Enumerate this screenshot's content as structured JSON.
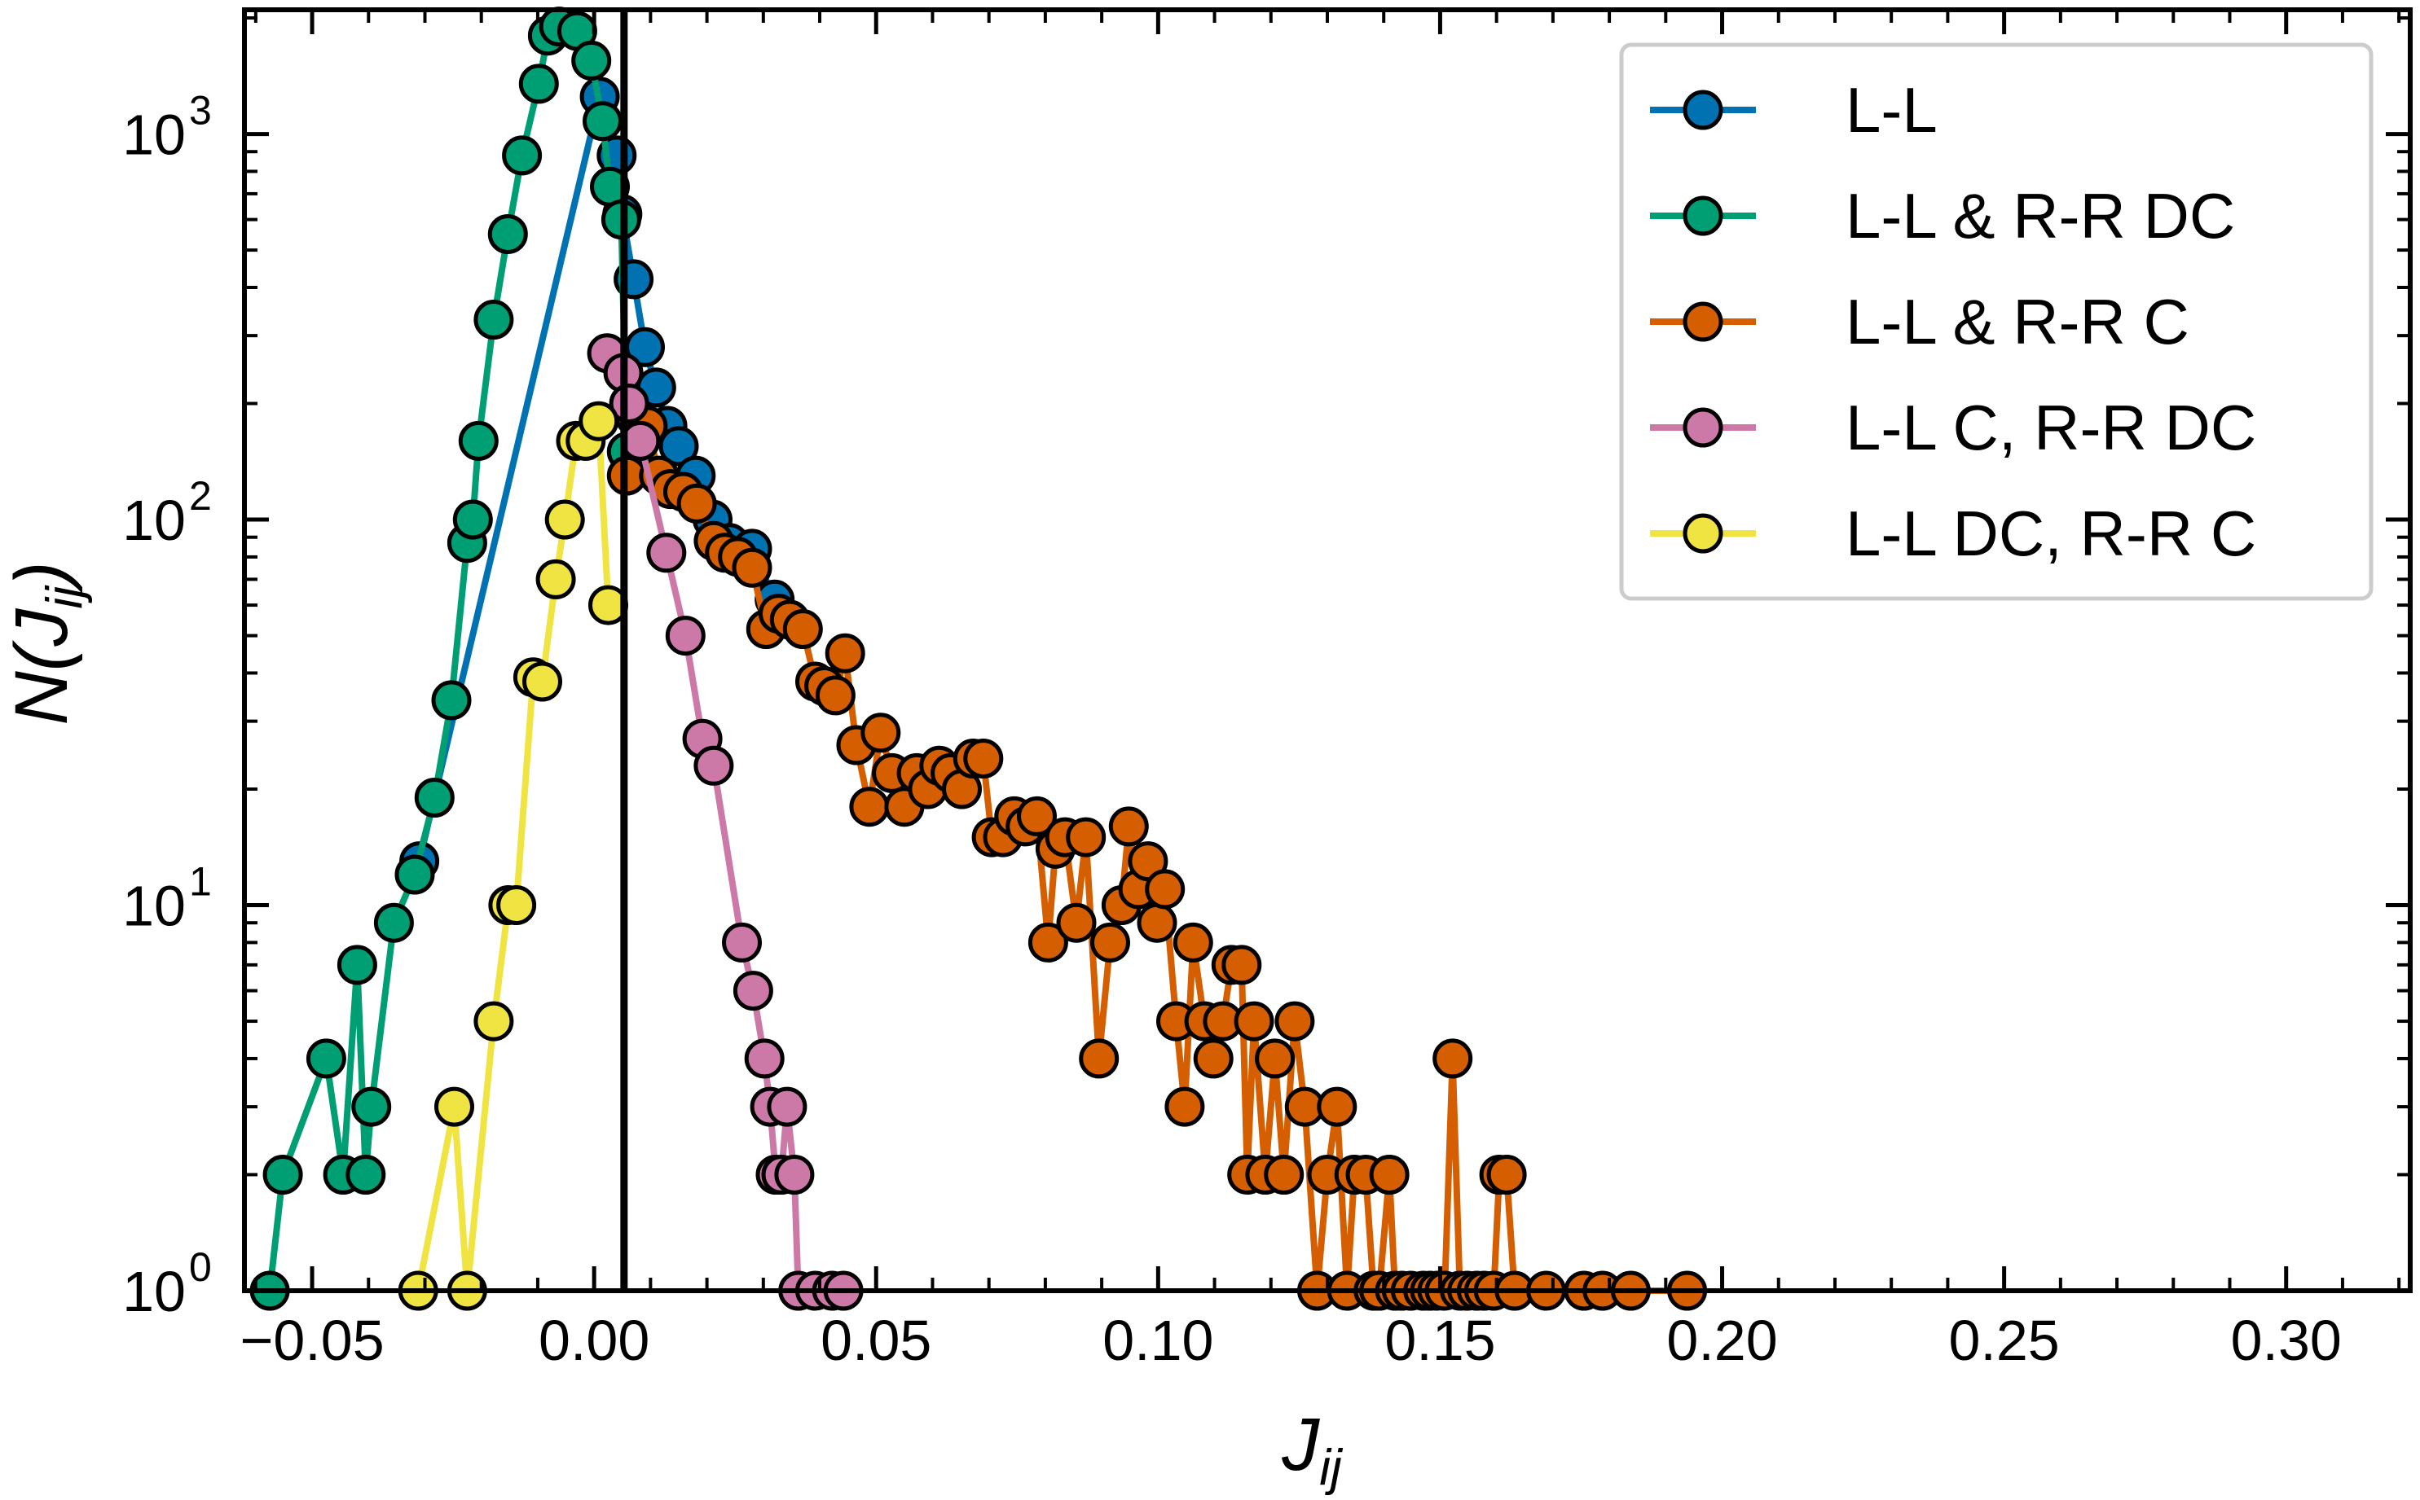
{
  "chart_data": {
    "type": "line",
    "xlabel": "J",
    "xlabel_sub": "ij",
    "ylabel": "N(J",
    "ylabel_sub": "ij",
    "ylabel_close": ")",
    "xlim": [
      -0.062,
      0.322
    ],
    "ylim": [
      1,
      2100
    ],
    "y_scale": "log",
    "x_ticks": [
      {
        "value": -0.05,
        "label": "−0.05"
      },
      {
        "value": 0.0,
        "label": "0.00"
      },
      {
        "value": 0.05,
        "label": "0.05"
      },
      {
        "value": 0.1,
        "label": "0.10"
      },
      {
        "value": 0.15,
        "label": "0.15"
      },
      {
        "value": 0.2,
        "label": "0.20"
      },
      {
        "value": 0.25,
        "label": "0.25"
      },
      {
        "value": 0.3,
        "label": "0.30"
      }
    ],
    "y_ticks": [
      {
        "value": 1,
        "base": "10",
        "exp": "0"
      },
      {
        "value": 10,
        "base": "10",
        "exp": "1"
      },
      {
        "value": 100,
        "base": "10",
        "exp": "2"
      },
      {
        "value": 1000,
        "base": "10",
        "exp": "3"
      }
    ],
    "vline_x": 0.0053,
    "grid": false,
    "legend_position": "top-right",
    "series": [
      {
        "name": "L-L",
        "color": "#0072b2",
        "points": [
          [
            -0.031,
            13
          ],
          [
            0.001,
            1250
          ],
          [
            0.004,
            880
          ],
          [
            0.005,
            620
          ],
          [
            0.007,
            420
          ],
          [
            0.009,
            280
          ],
          [
            0.011,
            220
          ],
          [
            0.013,
            175
          ],
          [
            0.015,
            155
          ],
          [
            0.018,
            130
          ],
          [
            0.021,
            100
          ],
          [
            0.024,
            87
          ],
          [
            0.028,
            84
          ],
          [
            0.032,
            62
          ]
        ]
      },
      {
        "name": "L-L & R-R DC",
        "color": "#009e73",
        "points": [
          [
            -0.0575,
            1
          ],
          [
            -0.0552,
            2
          ],
          [
            -0.0475,
            4
          ],
          [
            -0.0445,
            2
          ],
          [
            -0.042,
            7
          ],
          [
            -0.0405,
            2
          ],
          [
            -0.0395,
            3
          ],
          [
            -0.0355,
            9
          ],
          [
            -0.0318,
            12
          ],
          [
            -0.0283,
            19
          ],
          [
            -0.0253,
            34
          ],
          [
            -0.0225,
            87
          ],
          [
            -0.0215,
            100
          ],
          [
            -0.0205,
            160
          ],
          [
            -0.0178,
            330
          ],
          [
            -0.0153,
            550
          ],
          [
            -0.0128,
            880
          ],
          [
            -0.0098,
            1350
          ],
          [
            -0.0082,
            1800
          ],
          [
            -0.0062,
            1900
          ],
          [
            -0.003,
            1850
          ],
          [
            -0.0005,
            1550
          ],
          [
            0.0015,
            1080
          ],
          [
            0.0028,
            730
          ],
          [
            0.0048,
            600
          ],
          [
            0.0058,
            150
          ]
        ]
      },
      {
        "name": "L-L & R-R C",
        "color": "#d55e00",
        "points": [
          [
            0.0058,
            130
          ],
          [
            0.0072,
            185
          ],
          [
            0.0095,
            175
          ],
          [
            0.0115,
            130
          ],
          [
            0.0135,
            120
          ],
          [
            0.0158,
            118
          ],
          [
            0.0182,
            110
          ],
          [
            0.0212,
            88
          ],
          [
            0.0232,
            82
          ],
          [
            0.0255,
            80
          ],
          [
            0.028,
            75
          ],
          [
            0.0305,
            52
          ],
          [
            0.0327,
            57
          ],
          [
            0.0347,
            55
          ],
          [
            0.037,
            52
          ],
          [
            0.0392,
            38
          ],
          [
            0.0408,
            37
          ],
          [
            0.0428,
            35
          ],
          [
            0.0445,
            45
          ],
          [
            0.0465,
            26
          ],
          [
            0.0488,
            18
          ],
          [
            0.0508,
            28
          ],
          [
            0.0528,
            22
          ],
          [
            0.055,
            18
          ],
          [
            0.0572,
            22
          ],
          [
            0.0592,
            20
          ],
          [
            0.0612,
            23
          ],
          [
            0.0632,
            22
          ],
          [
            0.0652,
            20
          ],
          [
            0.0672,
            24
          ],
          [
            0.069,
            24
          ],
          [
            0.0705,
            15
          ],
          [
            0.0725,
            15
          ],
          [
            0.0745,
            17
          ],
          [
            0.0765,
            16
          ],
          [
            0.0785,
            17
          ],
          [
            0.0805,
            8
          ],
          [
            0.0818,
            14
          ],
          [
            0.0835,
            15
          ],
          [
            0.0855,
            9
          ],
          [
            0.0872,
            15
          ],
          [
            0.0895,
            4
          ],
          [
            0.0915,
            8
          ],
          [
            0.0935,
            10
          ],
          [
            0.0948,
            16
          ],
          [
            0.0965,
            11
          ],
          [
            0.0982,
            13
          ],
          [
            0.0998,
            9
          ],
          [
            0.1012,
            11
          ],
          [
            0.1032,
            5
          ],
          [
            0.1047,
            3
          ],
          [
            0.1062,
            8
          ],
          [
            0.1082,
            5
          ],
          [
            0.1098,
            4
          ],
          [
            0.1115,
            5
          ],
          [
            0.113,
            7
          ],
          [
            0.1148,
            7
          ],
          [
            0.1158,
            2
          ],
          [
            0.117,
            5
          ],
          [
            0.119,
            2
          ],
          [
            0.1207,
            4
          ],
          [
            0.1223,
            2
          ],
          [
            0.1242,
            5
          ],
          [
            0.126,
            3
          ],
          [
            0.1282,
            1
          ],
          [
            0.13,
            2
          ],
          [
            0.1317,
            3
          ],
          [
            0.1335,
            1
          ],
          [
            0.1348,
            2
          ],
          [
            0.1368,
            2
          ],
          [
            0.1382,
            1
          ],
          [
            0.1392,
            1
          ],
          [
            0.141,
            2
          ],
          [
            0.142,
            1
          ],
          [
            0.1432,
            1
          ],
          [
            0.1448,
            1
          ],
          [
            0.147,
            1
          ],
          [
            0.1482,
            1
          ],
          [
            0.1495,
            1
          ],
          [
            0.1508,
            1
          ],
          [
            0.1522,
            4
          ],
          [
            0.1535,
            1
          ],
          [
            0.1548,
            1
          ],
          [
            0.1565,
            1
          ],
          [
            0.1578,
            1
          ],
          [
            0.1595,
            1
          ],
          [
            0.1605,
            2
          ],
          [
            0.1618,
            2
          ],
          [
            0.1632,
            1
          ],
          [
            0.1688,
            1
          ],
          [
            0.1755,
            1
          ],
          [
            0.1788,
            1
          ],
          [
            0.1838,
            1
          ],
          [
            0.1938,
            1
          ]
        ]
      },
      {
        "name": "L-L C, R-R DC",
        "color": "#cc79a7",
        "points": [
          [
            0.0023,
            270
          ],
          [
            0.0052,
            240
          ],
          [
            0.0062,
            200
          ],
          [
            0.0082,
            160
          ],
          [
            0.0128,
            82
          ],
          [
            0.0162,
            50
          ],
          [
            0.0192,
            27
          ],
          [
            0.0212,
            23
          ],
          [
            0.0262,
            8
          ],
          [
            0.0282,
            6
          ],
          [
            0.0302,
            4
          ],
          [
            0.0312,
            3
          ],
          [
            0.0322,
            2
          ],
          [
            0.0332,
            2
          ],
          [
            0.0342,
            3
          ],
          [
            0.0355,
            2
          ],
          [
            0.0362,
            1
          ],
          [
            0.0392,
            1
          ],
          [
            0.0422,
            1
          ],
          [
            0.0442,
            1
          ]
        ]
      },
      {
        "name": "L-L DC, R-R C",
        "color": "#f0e442",
        "points": [
          [
            -0.0312,
            1
          ],
          [
            -0.0248,
            3
          ],
          [
            -0.0225,
            1
          ],
          [
            -0.0178,
            5
          ],
          [
            -0.0152,
            10
          ],
          [
            -0.0138,
            10
          ],
          [
            -0.0108,
            39
          ],
          [
            -0.0092,
            38
          ],
          [
            -0.0068,
            70
          ],
          [
            -0.0052,
            100
          ],
          [
            -0.0032,
            160
          ],
          [
            -0.0015,
            160
          ],
          [
            0.0008,
            180
          ],
          [
            0.0025,
            60
          ]
        ]
      }
    ]
  }
}
